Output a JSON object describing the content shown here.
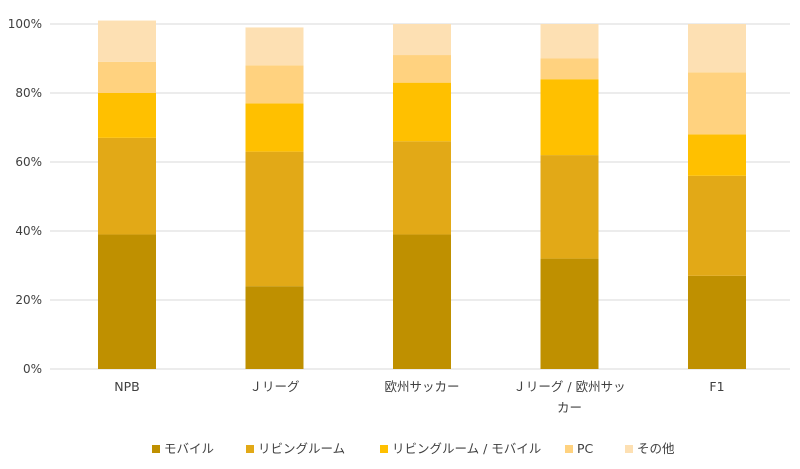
{
  "chart_data": {
    "type": "bar",
    "stacked": true,
    "categories": [
      "NPB",
      "Ｊリーグ",
      "欧州サッカー",
      "Ｊリーグ / 欧州サッカー",
      "F1"
    ],
    "category_lines": [
      [
        "NPB"
      ],
      [
        "Ｊリーグ"
      ],
      [
        "欧州サッカー"
      ],
      [
        "Ｊリーグ / 欧州サッ",
        "カー"
      ],
      [
        "F1"
      ]
    ],
    "series": [
      {
        "name": "モバイル",
        "color": "#bf9000",
        "values": [
          39,
          24,
          39,
          32,
          27
        ]
      },
      {
        "name": "リビングルーム",
        "color": "#e2a917",
        "values": [
          28,
          39,
          27,
          30,
          29
        ]
      },
      {
        "name": "リビングルーム / モバイル",
        "color": "#ffc000",
        "values": [
          13,
          14,
          17,
          22,
          12
        ]
      },
      {
        "name": "PC",
        "color": "#ffd27f",
        "values": [
          9,
          11,
          8,
          6,
          18
        ]
      },
      {
        "name": "その他",
        "color": "#fde0b3",
        "values": [
          12,
          11,
          9,
          10,
          14
        ]
      }
    ],
    "yticks": [
      "0%",
      "20%",
      "40%",
      "60%",
      "80%",
      "100%"
    ],
    "ylim": [
      0,
      100
    ],
    "grid": true,
    "legend_position": "bottom"
  }
}
